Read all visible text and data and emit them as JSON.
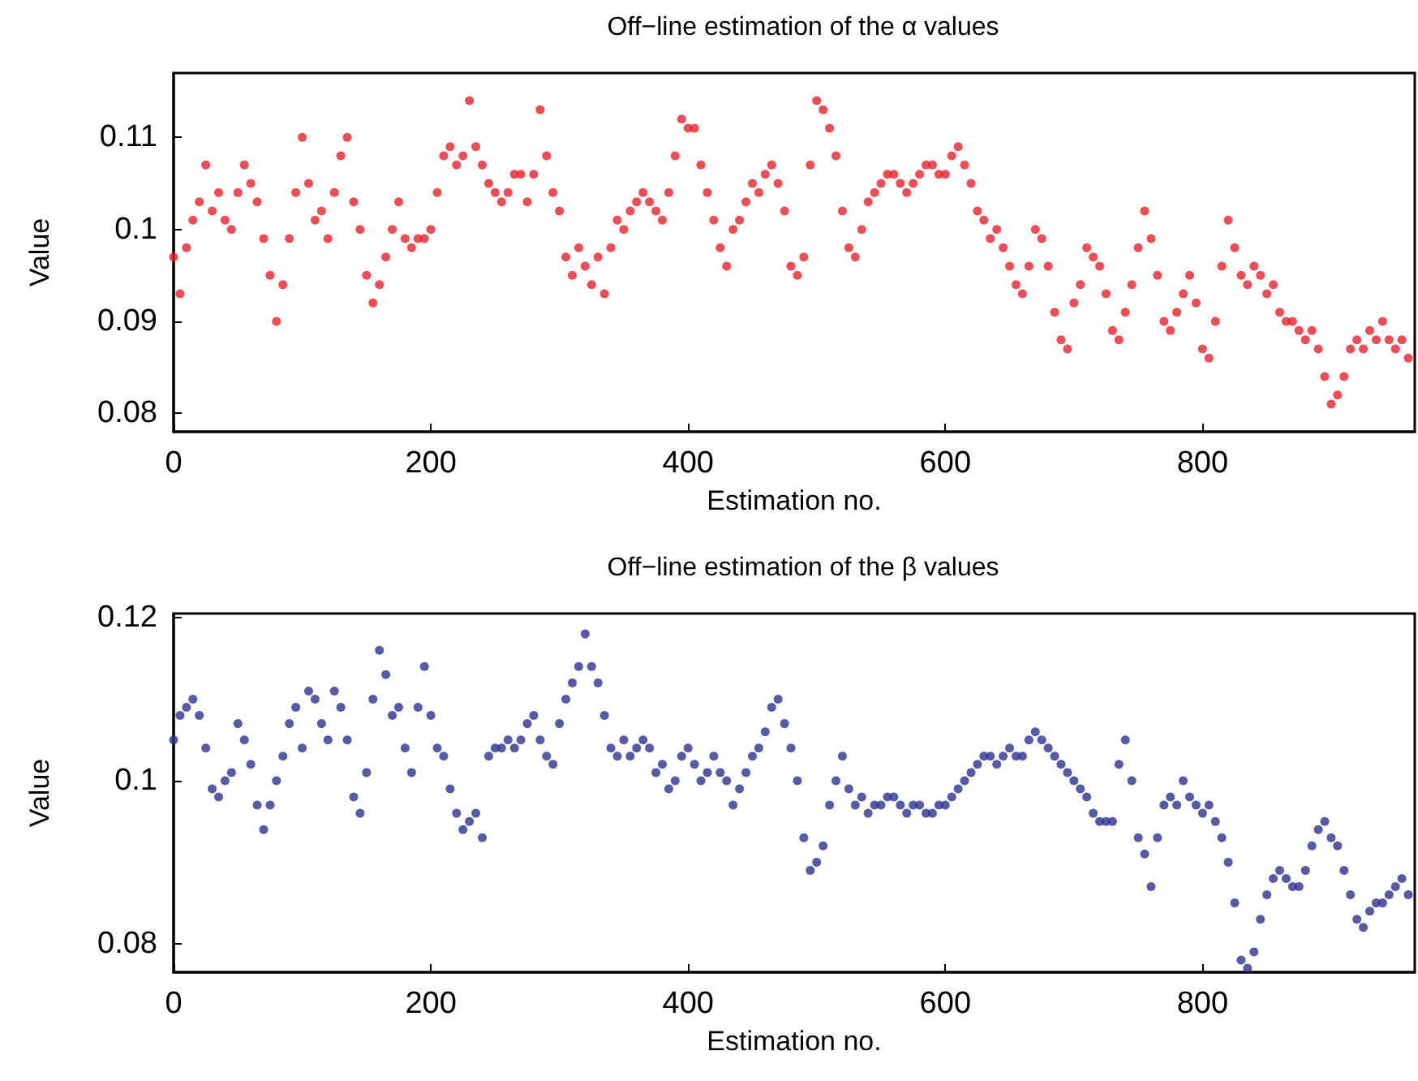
{
  "chart_data": [
    {
      "type": "scatter",
      "title": "Off−line estimation of the α values",
      "xlabel": "Estimation no.",
      "ylabel": "Value",
      "marker": "circle",
      "grid": false,
      "xlim": [
        0,
        965
      ],
      "xticks": [
        0,
        200,
        400,
        600,
        800
      ],
      "ylim": [
        0.078,
        0.117
      ],
      "yticks": [
        0.08,
        0.09,
        0.1,
        0.11
      ],
      "x": [
        0,
        5,
        10,
        15,
        20,
        25,
        30,
        35,
        40,
        45,
        50,
        55,
        60,
        65,
        70,
        75,
        80,
        85,
        90,
        95,
        100,
        105,
        110,
        115,
        120,
        125,
        130,
        135,
        140,
        145,
        150,
        155,
        160,
        165,
        170,
        175,
        180,
        185,
        190,
        195,
        200,
        205,
        210,
        215,
        220,
        225,
        230,
        235,
        240,
        245,
        250,
        255,
        260,
        265,
        270,
        275,
        280,
        285,
        290,
        295,
        300,
        305,
        310,
        315,
        320,
        325,
        330,
        335,
        340,
        345,
        350,
        355,
        360,
        365,
        370,
        375,
        380,
        385,
        390,
        395,
        400,
        405,
        410,
        415,
        420,
        425,
        430,
        435,
        440,
        445,
        450,
        455,
        460,
        465,
        470,
        475,
        480,
        485,
        490,
        495,
        500,
        505,
        510,
        515,
        520,
        525,
        530,
        535,
        540,
        545,
        550,
        555,
        560,
        565,
        570,
        575,
        580,
        585,
        590,
        595,
        600,
        605,
        610,
        615,
        620,
        625,
        630,
        635,
        640,
        645,
        650,
        655,
        660,
        665,
        670,
        675,
        680,
        685,
        690,
        695,
        700,
        705,
        710,
        715,
        720,
        725,
        730,
        735,
        740,
        745,
        750,
        755,
        760,
        765,
        770,
        775,
        780,
        785,
        790,
        795,
        800,
        805,
        810,
        815,
        820,
        825,
        830,
        835,
        840,
        845,
        850,
        855,
        860,
        865,
        870,
        875,
        880,
        885,
        890,
        895,
        900,
        905,
        910,
        915,
        920,
        925,
        930,
        935,
        940,
        945,
        950,
        955,
        960
      ],
      "series": [
        {
          "color": "#e8212b",
          "values": [
            0.097,
            0.093,
            0.098,
            0.101,
            0.103,
            0.107,
            0.102,
            0.104,
            0.101,
            0.1,
            0.104,
            0.107,
            0.105,
            0.103,
            0.099,
            0.095,
            0.09,
            0.094,
            0.099,
            0.104,
            0.11,
            0.105,
            0.101,
            0.102,
            0.099,
            0.104,
            0.108,
            0.11,
            0.103,
            0.1,
            0.095,
            0.092,
            0.094,
            0.097,
            0.1,
            0.103,
            0.099,
            0.098,
            0.099,
            0.099,
            0.1,
            0.104,
            0.108,
            0.109,
            0.107,
            0.108,
            0.114,
            0.109,
            0.107,
            0.105,
            0.104,
            0.103,
            0.104,
            0.106,
            0.106,
            0.103,
            0.106,
            0.113,
            0.108,
            0.104,
            0.102,
            0.097,
            0.095,
            0.098,
            0.096,
            0.094,
            0.097,
            0.093,
            0.098,
            0.101,
            0.1,
            0.102,
            0.103,
            0.104,
            0.103,
            0.102,
            0.101,
            0.104,
            0.108,
            0.112,
            0.111,
            0.111,
            0.107,
            0.104,
            0.101,
            0.098,
            0.096,
            0.1,
            0.101,
            0.103,
            0.105,
            0.104,
            0.106,
            0.107,
            0.105,
            0.102,
            0.096,
            0.095,
            0.097,
            0.107,
            0.114,
            0.113,
            0.111,
            0.108,
            0.102,
            0.098,
            0.097,
            0.1,
            0.103,
            0.104,
            0.105,
            0.106,
            0.106,
            0.105,
            0.104,
            0.105,
            0.106,
            0.107,
            0.107,
            0.106,
            0.106,
            0.108,
            0.109,
            0.107,
            0.105,
            0.102,
            0.101,
            0.099,
            0.1,
            0.098,
            0.096,
            0.094,
            0.093,
            0.096,
            0.1,
            0.099,
            0.096,
            0.091,
            0.088,
            0.087,
            0.092,
            0.094,
            0.098,
            0.097,
            0.096,
            0.093,
            0.089,
            0.088,
            0.091,
            0.094,
            0.098,
            0.102,
            0.099,
            0.095,
            0.09,
            0.089,
            0.091,
            0.093,
            0.095,
            0.092,
            0.087,
            0.086,
            0.09,
            0.096,
            0.101,
            0.098,
            0.095,
            0.094,
            0.096,
            0.095,
            0.093,
            0.094,
            0.091,
            0.09,
            0.09,
            0.089,
            0.088,
            0.089,
            0.087,
            0.084,
            0.081,
            0.082,
            0.084,
            0.087,
            0.088,
            0.087,
            0.089,
            0.088,
            0.09,
            0.088,
            0.087,
            0.088,
            0.086
          ]
        }
      ]
    },
    {
      "type": "scatter",
      "title": "Off−line estimation of the β values",
      "xlabel": "Estimation no.",
      "ylabel": "Value",
      "marker": "circle",
      "grid": false,
      "xlim": [
        0,
        965
      ],
      "xticks": [
        0,
        200,
        400,
        600,
        800
      ],
      "ylim": [
        0.0765,
        0.1205
      ],
      "yticks": [
        0.08,
        0.1,
        0.12
      ],
      "x": [
        0,
        5,
        10,
        15,
        20,
        25,
        30,
        35,
        40,
        45,
        50,
        55,
        60,
        65,
        70,
        75,
        80,
        85,
        90,
        95,
        100,
        105,
        110,
        115,
        120,
        125,
        130,
        135,
        140,
        145,
        150,
        155,
        160,
        165,
        170,
        175,
        180,
        185,
        190,
        195,
        200,
        205,
        210,
        215,
        220,
        225,
        230,
        235,
        240,
        245,
        250,
        255,
        260,
        265,
        270,
        275,
        280,
        285,
        290,
        295,
        300,
        305,
        310,
        315,
        320,
        325,
        330,
        335,
        340,
        345,
        350,
        355,
        360,
        365,
        370,
        375,
        380,
        385,
        390,
        395,
        400,
        405,
        410,
        415,
        420,
        425,
        430,
        435,
        440,
        445,
        450,
        455,
        460,
        465,
        470,
        475,
        480,
        485,
        490,
        495,
        500,
        505,
        510,
        515,
        520,
        525,
        530,
        535,
        540,
        545,
        550,
        555,
        560,
        565,
        570,
        575,
        580,
        585,
        590,
        595,
        600,
        605,
        610,
        615,
        620,
        625,
        630,
        635,
        640,
        645,
        650,
        655,
        660,
        665,
        670,
        675,
        680,
        685,
        690,
        695,
        700,
        705,
        710,
        715,
        720,
        725,
        730,
        735,
        740,
        745,
        750,
        755,
        760,
        765,
        770,
        775,
        780,
        785,
        790,
        795,
        800,
        805,
        810,
        815,
        820,
        825,
        830,
        835,
        840,
        845,
        850,
        855,
        860,
        865,
        870,
        875,
        880,
        885,
        890,
        895,
        900,
        905,
        910,
        915,
        920,
        925,
        930,
        935,
        940,
        945,
        950,
        955,
        960
      ],
      "series": [
        {
          "color": "#2e3192",
          "values": [
            0.105,
            0.108,
            0.109,
            0.11,
            0.108,
            0.104,
            0.099,
            0.098,
            0.1,
            0.101,
            0.107,
            0.105,
            0.102,
            0.097,
            0.094,
            0.097,
            0.1,
            0.103,
            0.107,
            0.109,
            0.104,
            0.111,
            0.11,
            0.107,
            0.105,
            0.111,
            0.109,
            0.105,
            0.098,
            0.096,
            0.101,
            0.11,
            0.116,
            0.113,
            0.108,
            0.109,
            0.104,
            0.101,
            0.109,
            0.114,
            0.108,
            0.104,
            0.103,
            0.099,
            0.096,
            0.094,
            0.095,
            0.096,
            0.093,
            0.103,
            0.104,
            0.104,
            0.105,
            0.104,
            0.105,
            0.107,
            0.108,
            0.105,
            0.103,
            0.102,
            0.107,
            0.11,
            0.112,
            0.114,
            0.118,
            0.114,
            0.112,
            0.108,
            0.104,
            0.103,
            0.105,
            0.103,
            0.104,
            0.105,
            0.104,
            0.101,
            0.102,
            0.099,
            0.1,
            0.103,
            0.104,
            0.102,
            0.1,
            0.101,
            0.103,
            0.101,
            0.1,
            0.097,
            0.099,
            0.101,
            0.103,
            0.104,
            0.106,
            0.109,
            0.11,
            0.107,
            0.104,
            0.1,
            0.093,
            0.089,
            0.09,
            0.092,
            0.097,
            0.1,
            0.103,
            0.099,
            0.097,
            0.098,
            0.096,
            0.097,
            0.097,
            0.098,
            0.098,
            0.097,
            0.096,
            0.097,
            0.097,
            0.096,
            0.096,
            0.097,
            0.097,
            0.098,
            0.099,
            0.1,
            0.101,
            0.102,
            0.103,
            0.103,
            0.102,
            0.103,
            0.104,
            0.103,
            0.103,
            0.105,
            0.106,
            0.105,
            0.104,
            0.103,
            0.102,
            0.101,
            0.1,
            0.099,
            0.098,
            0.096,
            0.095,
            0.095,
            0.095,
            0.102,
            0.105,
            0.1,
            0.093,
            0.091,
            0.087,
            0.093,
            0.097,
            0.098,
            0.097,
            0.1,
            0.098,
            0.097,
            0.096,
            0.097,
            0.095,
            0.093,
            0.09,
            0.085,
            0.078,
            0.077,
            0.079,
            0.083,
            0.086,
            0.088,
            0.089,
            0.088,
            0.087,
            0.087,
            0.089,
            0.092,
            0.094,
            0.095,
            0.093,
            0.092,
            0.089,
            0.086,
            0.083,
            0.082,
            0.084,
            0.085,
            0.085,
            0.086,
            0.087,
            0.088,
            0.086
          ]
        }
      ]
    }
  ]
}
